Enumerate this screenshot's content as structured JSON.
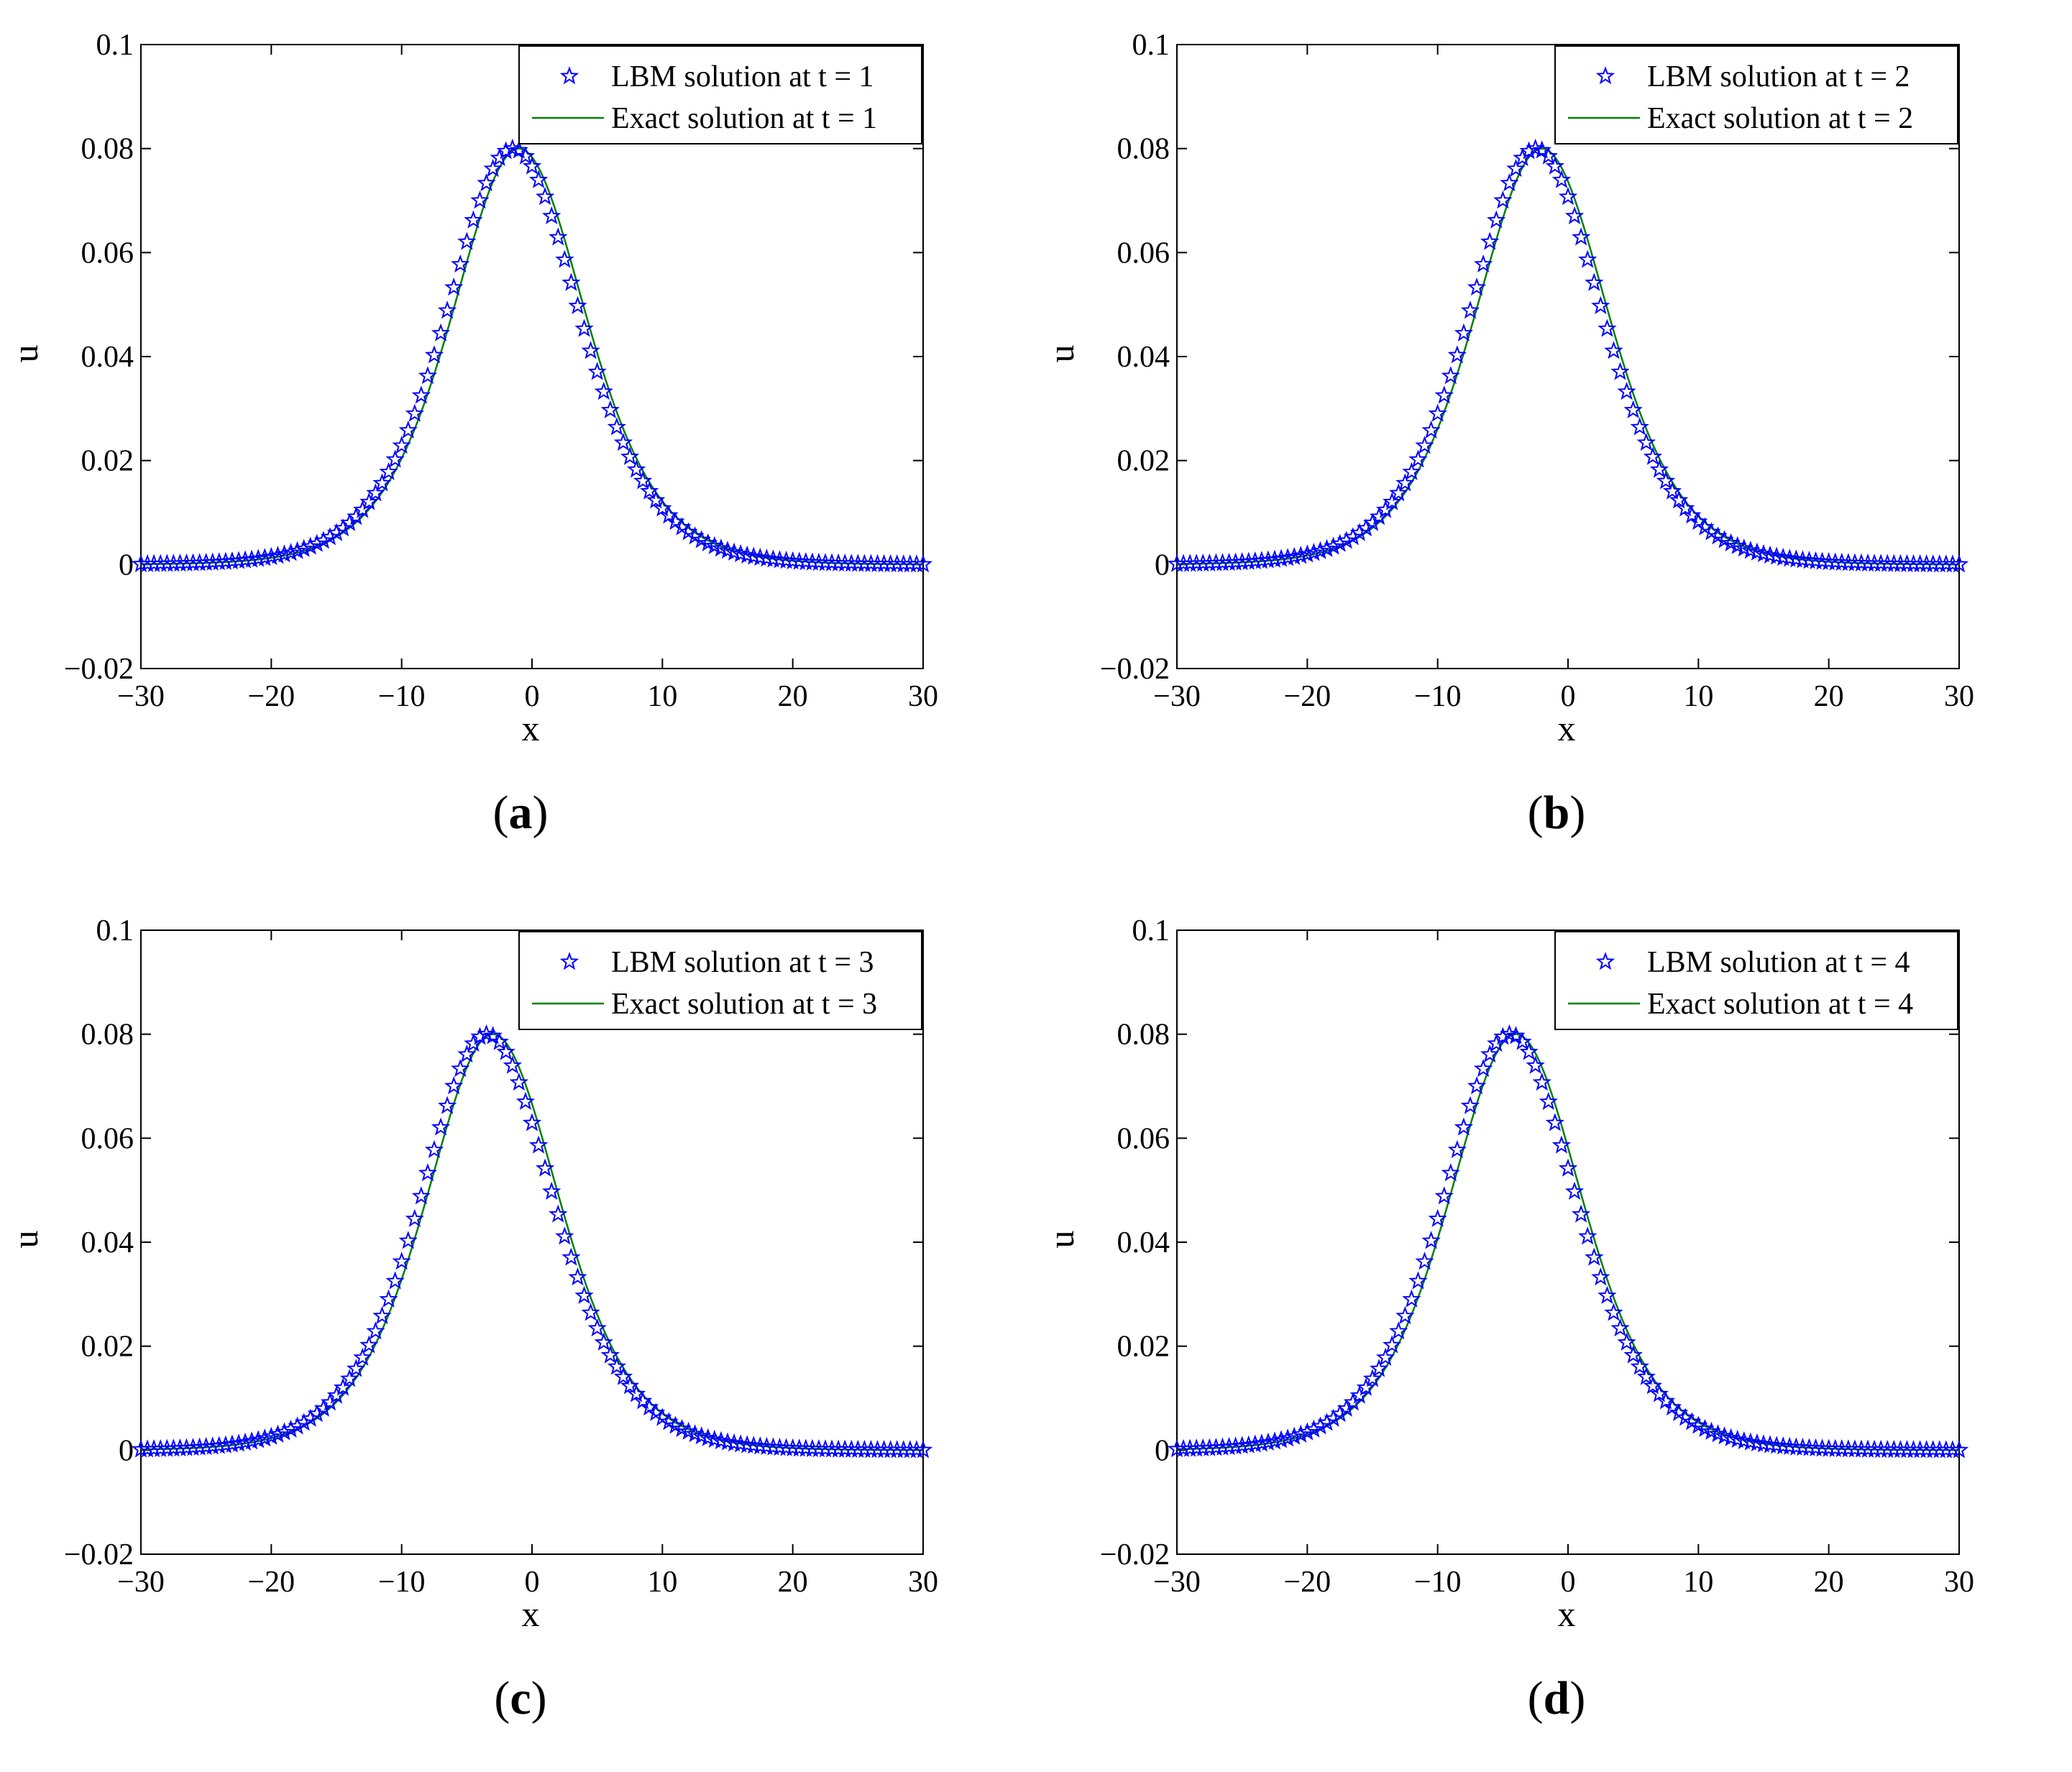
{
  "chart_data": [
    {
      "type": "line",
      "panel_label": "a",
      "title": "",
      "xlabel": "x",
      "ylabel": "u",
      "xlim": [
        -30,
        30
      ],
      "ylim": [
        -0.02,
        0.1
      ],
      "xticks": [
        "−30",
        "−20",
        "−10",
        "0",
        "10",
        "20",
        "30"
      ],
      "yticks": [
        "−0.02",
        "0",
        "0.02",
        "0.04",
        "0.06",
        "0.08",
        "0.1"
      ],
      "legend_position": "top-right",
      "t": 1,
      "peak": 0.08,
      "peak_x": -1,
      "series": [
        {
          "name": "LBM solution at t = 1",
          "style": "star-markers",
          "color": "#0000ff",
          "x_range": [
            -30,
            30
          ],
          "samples": 121
        },
        {
          "name": "Exact solution at t = 1",
          "style": "line",
          "color": "#008000",
          "x_range": [
            -30,
            30
          ]
        }
      ]
    },
    {
      "type": "line",
      "panel_label": "b",
      "title": "",
      "xlabel": "x",
      "ylabel": "u",
      "xlim": [
        -30,
        30
      ],
      "ylim": [
        -0.02,
        0.1
      ],
      "xticks": [
        "−30",
        "−20",
        "−10",
        "0",
        "10",
        "20",
        "30"
      ],
      "yticks": [
        "−0.02",
        "0",
        "0.02",
        "0.04",
        "0.06",
        "0.08",
        "0.1"
      ],
      "legend_position": "top-right",
      "t": 2,
      "peak": 0.08,
      "peak_x": -2,
      "series": [
        {
          "name": "LBM solution at t = 2",
          "style": "star-markers",
          "color": "#0000ff",
          "x_range": [
            -30,
            30
          ],
          "samples": 121
        },
        {
          "name": "Exact solution at t = 2",
          "style": "line",
          "color": "#008000",
          "x_range": [
            -30,
            30
          ]
        }
      ]
    },
    {
      "type": "line",
      "panel_label": "c",
      "title": "",
      "xlabel": "x",
      "ylabel": "u",
      "xlim": [
        -30,
        30
      ],
      "ylim": [
        -0.02,
        0.1
      ],
      "xticks": [
        "−30",
        "−20",
        "−10",
        "0",
        "10",
        "20",
        "30"
      ],
      "yticks": [
        "−0.02",
        "0",
        "0.02",
        "0.04",
        "0.06",
        "0.08",
        "0.1"
      ],
      "legend_position": "top-right",
      "t": 3,
      "peak": 0.08,
      "peak_x": -3,
      "series": [
        {
          "name": "LBM solution at t = 3",
          "style": "star-markers",
          "color": "#0000ff",
          "x_range": [
            -30,
            30
          ],
          "samples": 121
        },
        {
          "name": "Exact solution at t = 3",
          "style": "line",
          "color": "#008000",
          "x_range": [
            -30,
            30
          ]
        }
      ]
    },
    {
      "type": "line",
      "panel_label": "d",
      "title": "",
      "xlabel": "x",
      "ylabel": "u",
      "xlim": [
        -30,
        30
      ],
      "ylim": [
        -0.02,
        0.1
      ],
      "xticks": [
        "−30",
        "−20",
        "−10",
        "0",
        "10",
        "20",
        "30"
      ],
      "yticks": [
        "−0.02",
        "0",
        "0.02",
        "0.04",
        "0.06",
        "0.08",
        "0.1"
      ],
      "legend_position": "top-right",
      "t": 4,
      "peak": 0.08,
      "peak_x": -4,
      "series": [
        {
          "name": "LBM solution at t = 4",
          "style": "star-markers",
          "color": "#0000ff",
          "x_range": [
            -30,
            30
          ],
          "samples": 121
        },
        {
          "name": "Exact solution at t = 4",
          "style": "line",
          "color": "#008000",
          "x_range": [
            -30,
            30
          ]
        }
      ]
    }
  ]
}
